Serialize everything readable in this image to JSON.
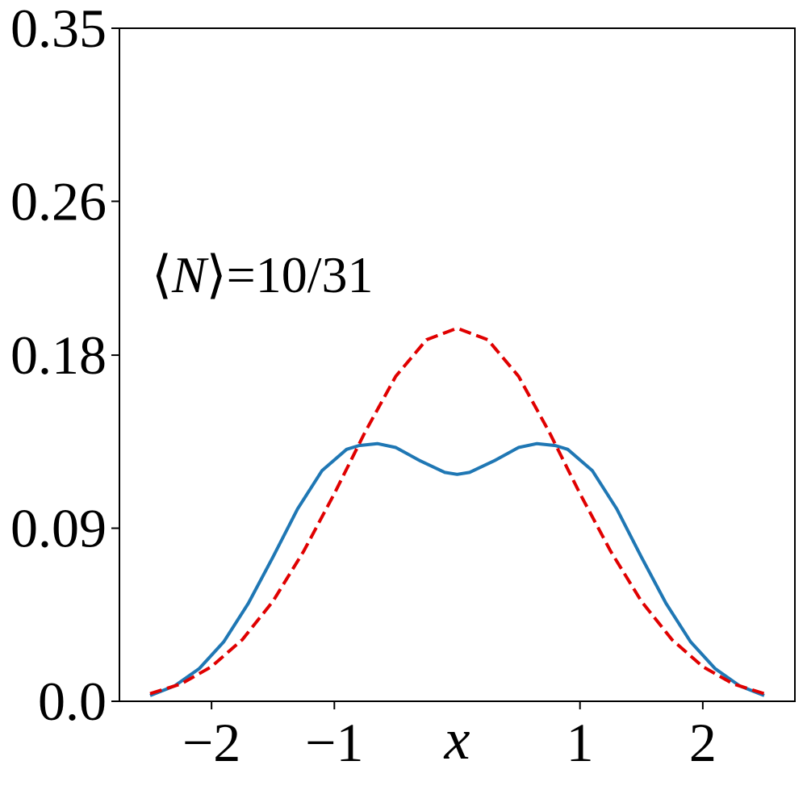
{
  "chart_data": {
    "type": "line",
    "xlabel": "x",
    "ylabel": "",
    "xlim": [
      -2.75,
      2.75
    ],
    "ylim": [
      0.0,
      0.35
    ],
    "x_ticks": [
      {
        "value": -2,
        "label": "−2"
      },
      {
        "value": -1,
        "label": "−1"
      },
      {
        "value": 1,
        "label": "1"
      },
      {
        "value": 2,
        "label": "2"
      }
    ],
    "y_ticks": [
      {
        "value": 0.0,
        "label": "0.0"
      },
      {
        "value": 0.09,
        "label": "0.09"
      },
      {
        "value": 0.18,
        "label": "0.18"
      },
      {
        "value": 0.26,
        "label": "0.26"
      },
      {
        "value": 0.35,
        "label": "0.35"
      }
    ],
    "grid": false,
    "annotation": {
      "open": "⟨",
      "var": "N",
      "close": "⟩",
      "rest": "=10/31"
    },
    "series": [
      {
        "color": "#1f77b4",
        "style": "solid",
        "x": [
          -2.5,
          -2.3,
          -2.1,
          -1.9,
          -1.7,
          -1.5,
          -1.3,
          -1.1,
          -0.9,
          -0.8,
          -0.65,
          -0.5,
          -0.3,
          -0.1,
          0.0,
          0.1,
          0.3,
          0.5,
          0.65,
          0.8,
          0.9,
          1.1,
          1.3,
          1.5,
          1.7,
          1.9,
          2.1,
          2.3,
          2.5
        ],
        "y": [
          0.003,
          0.008,
          0.017,
          0.031,
          0.051,
          0.075,
          0.1,
          0.12,
          0.131,
          0.133,
          0.134,
          0.132,
          0.125,
          0.119,
          0.118,
          0.119,
          0.125,
          0.132,
          0.134,
          0.133,
          0.131,
          0.12,
          0.1,
          0.075,
          0.051,
          0.031,
          0.017,
          0.008,
          0.003
        ]
      },
      {
        "color": "#e00000",
        "style": "dashed",
        "x": [
          -2.5,
          -2.25,
          -2.0,
          -1.75,
          -1.5,
          -1.25,
          -1.0,
          -0.75,
          -0.5,
          -0.25,
          0.0,
          0.25,
          0.5,
          0.75,
          1.0,
          1.25,
          1.5,
          1.75,
          2.0,
          2.25,
          2.5
        ],
        "y": [
          0.004,
          0.009,
          0.018,
          0.032,
          0.052,
          0.078,
          0.108,
          0.14,
          0.169,
          0.188,
          0.194,
          0.188,
          0.169,
          0.14,
          0.108,
          0.078,
          0.052,
          0.032,
          0.018,
          0.009,
          0.004
        ]
      }
    ]
  }
}
